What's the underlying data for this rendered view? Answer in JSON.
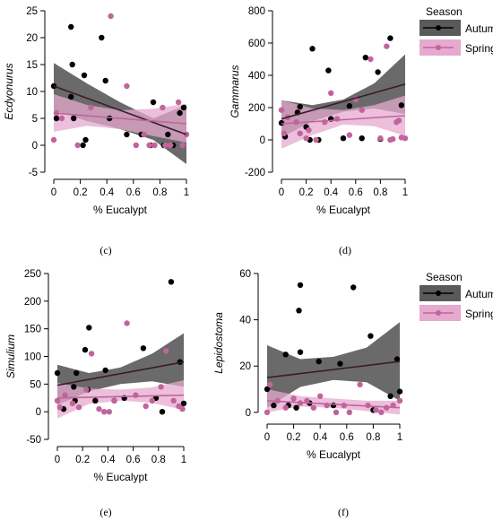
{
  "colors": {
    "autumn": "#000000",
    "autumn_band": "#5a5a5a",
    "spring": "#c2649c",
    "spring_band": "#e6a9cf",
    "autumn_line": "#3a1a2e"
  },
  "legend": {
    "title": "Season",
    "items": [
      "Autumn",
      "Spring"
    ]
  },
  "chart_data": [
    {
      "type": "scatter",
      "caption": "(c)",
      "xlabel": "% Eucalypt",
      "ylabel": "Ecdyonurus",
      "xlim": [
        0,
        1
      ],
      "ylim": [
        -5,
        25
      ],
      "xticks": [
        0,
        0.2,
        0.4,
        0.6,
        0.8,
        1
      ],
      "xticklabels": [
        "0",
        "0.2",
        "0.4",
        "0.6",
        "0.8",
        "1"
      ],
      "yticks": [
        -5,
        0,
        5,
        10,
        15,
        20,
        25
      ],
      "series": [
        {
          "name": "Autumn",
          "points": [
            [
              0,
              11
            ],
            [
              0.02,
              5
            ],
            [
              0.13,
              22
            ],
            [
              0.14,
              15
            ],
            [
              0.13,
              9
            ],
            [
              0.15,
              5
            ],
            [
              0.22,
              0
            ],
            [
              0.24,
              1
            ],
            [
              0.23,
              13
            ],
            [
              0.36,
              20
            ],
            [
              0.39,
              12
            ],
            [
              0.42,
              5
            ],
            [
              0.55,
              2
            ],
            [
              0.66,
              2
            ],
            [
              0.73,
              0
            ],
            [
              0.75,
              8
            ],
            [
              0.83,
              0
            ],
            [
              0.86,
              2
            ],
            [
              0.9,
              0
            ],
            [
              0.95,
              6
            ],
            [
              0.98,
              7
            ]
          ],
          "fit": [
            [
              0,
              11
            ],
            [
              1,
              2
            ]
          ],
          "band": [
            [
              0,
              15.3
            ],
            [
              0.25,
              11.5
            ],
            [
              0.5,
              8
            ],
            [
              0.75,
              5
            ],
            [
              1,
              7.5
            ],
            [
              1,
              -3.5
            ],
            [
              0.75,
              1
            ],
            [
              0.5,
              3
            ],
            [
              0.25,
              4.5
            ],
            [
              0,
              6.5
            ]
          ]
        },
        {
          "name": "Spring",
          "points": [
            [
              0,
              1
            ],
            [
              0.02,
              6
            ],
            [
              0.06,
              5
            ],
            [
              0.18,
              0
            ],
            [
              0.28,
              7
            ],
            [
              0.43,
              24
            ],
            [
              0.55,
              11
            ],
            [
              0.62,
              0
            ],
            [
              0.68,
              2
            ],
            [
              0.72,
              0
            ],
            [
              0.76,
              0
            ],
            [
              0.82,
              7
            ],
            [
              0.84,
              0
            ],
            [
              0.88,
              0
            ],
            [
              0.94,
              8
            ],
            [
              0.97,
              0
            ],
            [
              1,
              2
            ]
          ],
          "fit": [
            [
              0,
              6
            ],
            [
              1,
              4
            ]
          ],
          "band": [
            [
              0,
              9.5
            ],
            [
              0.25,
              7.5
            ],
            [
              0.5,
              6.5
            ],
            [
              0.75,
              6.8
            ],
            [
              1,
              7.7
            ],
            [
              1,
              0.5
            ],
            [
              0.75,
              1.7
            ],
            [
              0.5,
              3
            ],
            [
              0.25,
              3.6
            ],
            [
              0,
              2.5
            ]
          ]
        }
      ]
    },
    {
      "type": "scatter",
      "caption": "(d)",
      "xlabel": "% Eucalypt",
      "ylabel": "Gammarus",
      "xlim": [
        0,
        1
      ],
      "ylim": [
        -200,
        800
      ],
      "xticks": [
        0,
        0.2,
        0.4,
        0.6,
        0.8,
        1
      ],
      "xticklabels": [
        "0",
        "0.2",
        "0.4",
        "0.6",
        "0.8",
        "1"
      ],
      "yticks": [
        -200,
        0,
        200,
        400,
        600,
        800
      ],
      "series": [
        {
          "name": "Autumn",
          "points": [
            [
              0,
              105
            ],
            [
              0.03,
              20
            ],
            [
              0.13,
              170
            ],
            [
              0.15,
              205
            ],
            [
              0.2,
              80
            ],
            [
              0.23,
              0
            ],
            [
              0.25,
              565
            ],
            [
              0.3,
              0
            ],
            [
              0.38,
              430
            ],
            [
              0.4,
              130
            ],
            [
              0.5,
              10
            ],
            [
              0.55,
              210
            ],
            [
              0.65,
              10
            ],
            [
              0.68,
              510
            ],
            [
              0.78,
              420
            ],
            [
              0.8,
              5
            ],
            [
              0.88,
              630
            ],
            [
              0.97,
              215
            ]
          ],
          "fit": [
            [
              0,
              130
            ],
            [
              1,
              345
            ]
          ],
          "band": [
            [
              0,
              245
            ],
            [
              0.25,
              215
            ],
            [
              0.5,
              250
            ],
            [
              0.75,
              350
            ],
            [
              1,
              530
            ],
            [
              1,
              160
            ],
            [
              0.75,
              195
            ],
            [
              0.5,
              175
            ],
            [
              0.25,
              115
            ],
            [
              0,
              15
            ]
          ]
        },
        {
          "name": "Spring",
          "points": [
            [
              0,
              185
            ],
            [
              0.02,
              40
            ],
            [
              0.05,
              140
            ],
            [
              0.12,
              110
            ],
            [
              0.15,
              40
            ],
            [
              0.2,
              10
            ],
            [
              0.22,
              60
            ],
            [
              0.28,
              0
            ],
            [
              0.35,
              110
            ],
            [
              0.4,
              290
            ],
            [
              0.45,
              130
            ],
            [
              0.55,
              30
            ],
            [
              0.6,
              250
            ],
            [
              0.65,
              185
            ],
            [
              0.72,
              500
            ],
            [
              0.8,
              10
            ],
            [
              0.85,
              580
            ],
            [
              0.88,
              0
            ],
            [
              0.9,
              5
            ],
            [
              0.93,
              110
            ],
            [
              0.95,
              120
            ],
            [
              0.97,
              15
            ],
            [
              1,
              10
            ]
          ],
          "fit": [
            [
              0,
              100
            ],
            [
              1,
              150
            ]
          ],
          "band": [
            [
              0,
              245
            ],
            [
              0.25,
              195
            ],
            [
              0.5,
              185
            ],
            [
              0.75,
              215
            ],
            [
              1,
              275
            ],
            [
              1,
              25
            ],
            [
              0.75,
              85
            ],
            [
              0.5,
              95
            ],
            [
              0.25,
              30
            ],
            [
              0,
              -55
            ]
          ]
        }
      ]
    },
    {
      "type": "scatter",
      "caption": "(e)",
      "xlabel": "% Eucalypt",
      "ylabel": "Simulium",
      "xlim": [
        0,
        1
      ],
      "ylim": [
        -50,
        250
      ],
      "xticks": [
        0,
        0.2,
        0.4,
        0.6,
        0.8,
        1
      ],
      "xticklabels": [
        "0",
        "0.2",
        "0.4",
        "0.6",
        "0.8",
        "1"
      ],
      "yticks": [
        -50,
        0,
        50,
        100,
        150,
        200,
        250
      ],
      "series": [
        {
          "name": "Autumn",
          "points": [
            [
              0,
              70
            ],
            [
              0.05,
              5
            ],
            [
              0.13,
              45
            ],
            [
              0.15,
              70
            ],
            [
              0.14,
              20
            ],
            [
              0.22,
              112
            ],
            [
              0.24,
              40
            ],
            [
              0.25,
              152
            ],
            [
              0.3,
              20
            ],
            [
              0.38,
              75
            ],
            [
              0.45,
              20
            ],
            [
              0.53,
              25
            ],
            [
              0.68,
              115
            ],
            [
              0.78,
              25
            ],
            [
              0.83,
              0
            ],
            [
              0.9,
              235
            ],
            [
              0.97,
              90
            ],
            [
              1,
              15
            ]
          ],
          "fit": [
            [
              0,
              48
            ],
            [
              1,
              90
            ]
          ],
          "band": [
            [
              0,
              85
            ],
            [
              0.25,
              70
            ],
            [
              0.5,
              80
            ],
            [
              0.75,
              105
            ],
            [
              1,
              142
            ],
            [
              1,
              45
            ],
            [
              0.75,
              55
            ],
            [
              0.5,
              50
            ],
            [
              0.25,
              37
            ],
            [
              0,
              12
            ]
          ]
        },
        {
          "name": "Spring",
          "points": [
            [
              0,
              20
            ],
            [
              0.02,
              8
            ],
            [
              0.06,
              30
            ],
            [
              0.12,
              15
            ],
            [
              0.17,
              8
            ],
            [
              0.23,
              40
            ],
            [
              0.27,
              105
            ],
            [
              0.33,
              5
            ],
            [
              0.37,
              0
            ],
            [
              0.41,
              0
            ],
            [
              0.45,
              20
            ],
            [
              0.55,
              160
            ],
            [
              0.62,
              30
            ],
            [
              0.7,
              10
            ],
            [
              0.75,
              20
            ],
            [
              0.82,
              45
            ],
            [
              0.86,
              110
            ],
            [
              0.92,
              20
            ],
            [
              0.96,
              10
            ],
            [
              0.99,
              5
            ]
          ],
          "fit": [
            [
              0,
              25
            ],
            [
              1,
              30
            ]
          ],
          "band": [
            [
              0,
              52
            ],
            [
              0.25,
              42
            ],
            [
              0.5,
              40
            ],
            [
              0.75,
              44
            ],
            [
              1,
              57
            ],
            [
              1,
              3
            ],
            [
              0.75,
              16
            ],
            [
              0.5,
              20
            ],
            [
              0.25,
              14
            ],
            [
              0,
              -12
            ]
          ]
        }
      ]
    },
    {
      "type": "scatter",
      "caption": "(f)",
      "xlabel": "% Eucalypt",
      "ylabel": "Lepidostoma",
      "xlim": [
        0,
        1
      ],
      "ylim": [
        -2,
        60
      ],
      "xticks": [
        0,
        0.2,
        0.4,
        0.6,
        0.8,
        1
      ],
      "xticklabels": [
        "0",
        "0.2",
        "0.4",
        "0.6",
        "0.8",
        "1"
      ],
      "yticks": [
        0,
        20,
        40,
        60
      ],
      "series": [
        {
          "name": "Autumn",
          "points": [
            [
              0,
              10
            ],
            [
              0.05,
              3
            ],
            [
              0.14,
              25
            ],
            [
              0.16,
              3
            ],
            [
              0.22,
              2
            ],
            [
              0.24,
              44
            ],
            [
              0.25,
              55
            ],
            [
              0.25,
              26
            ],
            [
              0.32,
              4
            ],
            [
              0.39,
              22
            ],
            [
              0.5,
              3
            ],
            [
              0.55,
              21
            ],
            [
              0.65,
              54
            ],
            [
              0.78,
              33
            ],
            [
              0.8,
              1
            ],
            [
              0.93,
              7
            ],
            [
              0.98,
              23
            ],
            [
              1,
              9
            ]
          ],
          "fit": [
            [
              0,
              15
            ],
            [
              1,
              22
            ]
          ],
          "band": [
            [
              0,
              29
            ],
            [
              0.25,
              23
            ],
            [
              0.5,
              24
            ],
            [
              0.75,
              28
            ],
            [
              1,
              39
            ],
            [
              1,
              5
            ],
            [
              0.75,
              13
            ],
            [
              0.5,
              14
            ],
            [
              0.25,
              11
            ],
            [
              0,
              2
            ]
          ]
        },
        {
          "name": "Spring",
          "points": [
            [
              0,
              0
            ],
            [
              0.02,
              12
            ],
            [
              0.08,
              5
            ],
            [
              0.14,
              2
            ],
            [
              0.2,
              6
            ],
            [
              0.25,
              4
            ],
            [
              0.3,
              5
            ],
            [
              0.35,
              2
            ],
            [
              0.4,
              7
            ],
            [
              0.45,
              3
            ],
            [
              0.52,
              0
            ],
            [
              0.58,
              3
            ],
            [
              0.62,
              0
            ],
            [
              0.7,
              12
            ],
            [
              0.76,
              3
            ],
            [
              0.82,
              1
            ],
            [
              0.86,
              0
            ],
            [
              0.9,
              2
            ],
            [
              0.95,
              3
            ],
            [
              1,
              5
            ]
          ],
          "fit": [
            [
              0,
              5
            ],
            [
              1,
              2
            ]
          ],
          "band": [
            [
              0,
              10
            ],
            [
              0.25,
              7
            ],
            [
              0.5,
              6
            ],
            [
              0.75,
              5
            ],
            [
              1,
              5
            ],
            [
              1,
              -1
            ],
            [
              0.75,
              0.5
            ],
            [
              0.5,
              2
            ],
            [
              0.25,
              2.5
            ],
            [
              0,
              0
            ]
          ]
        }
      ]
    }
  ]
}
